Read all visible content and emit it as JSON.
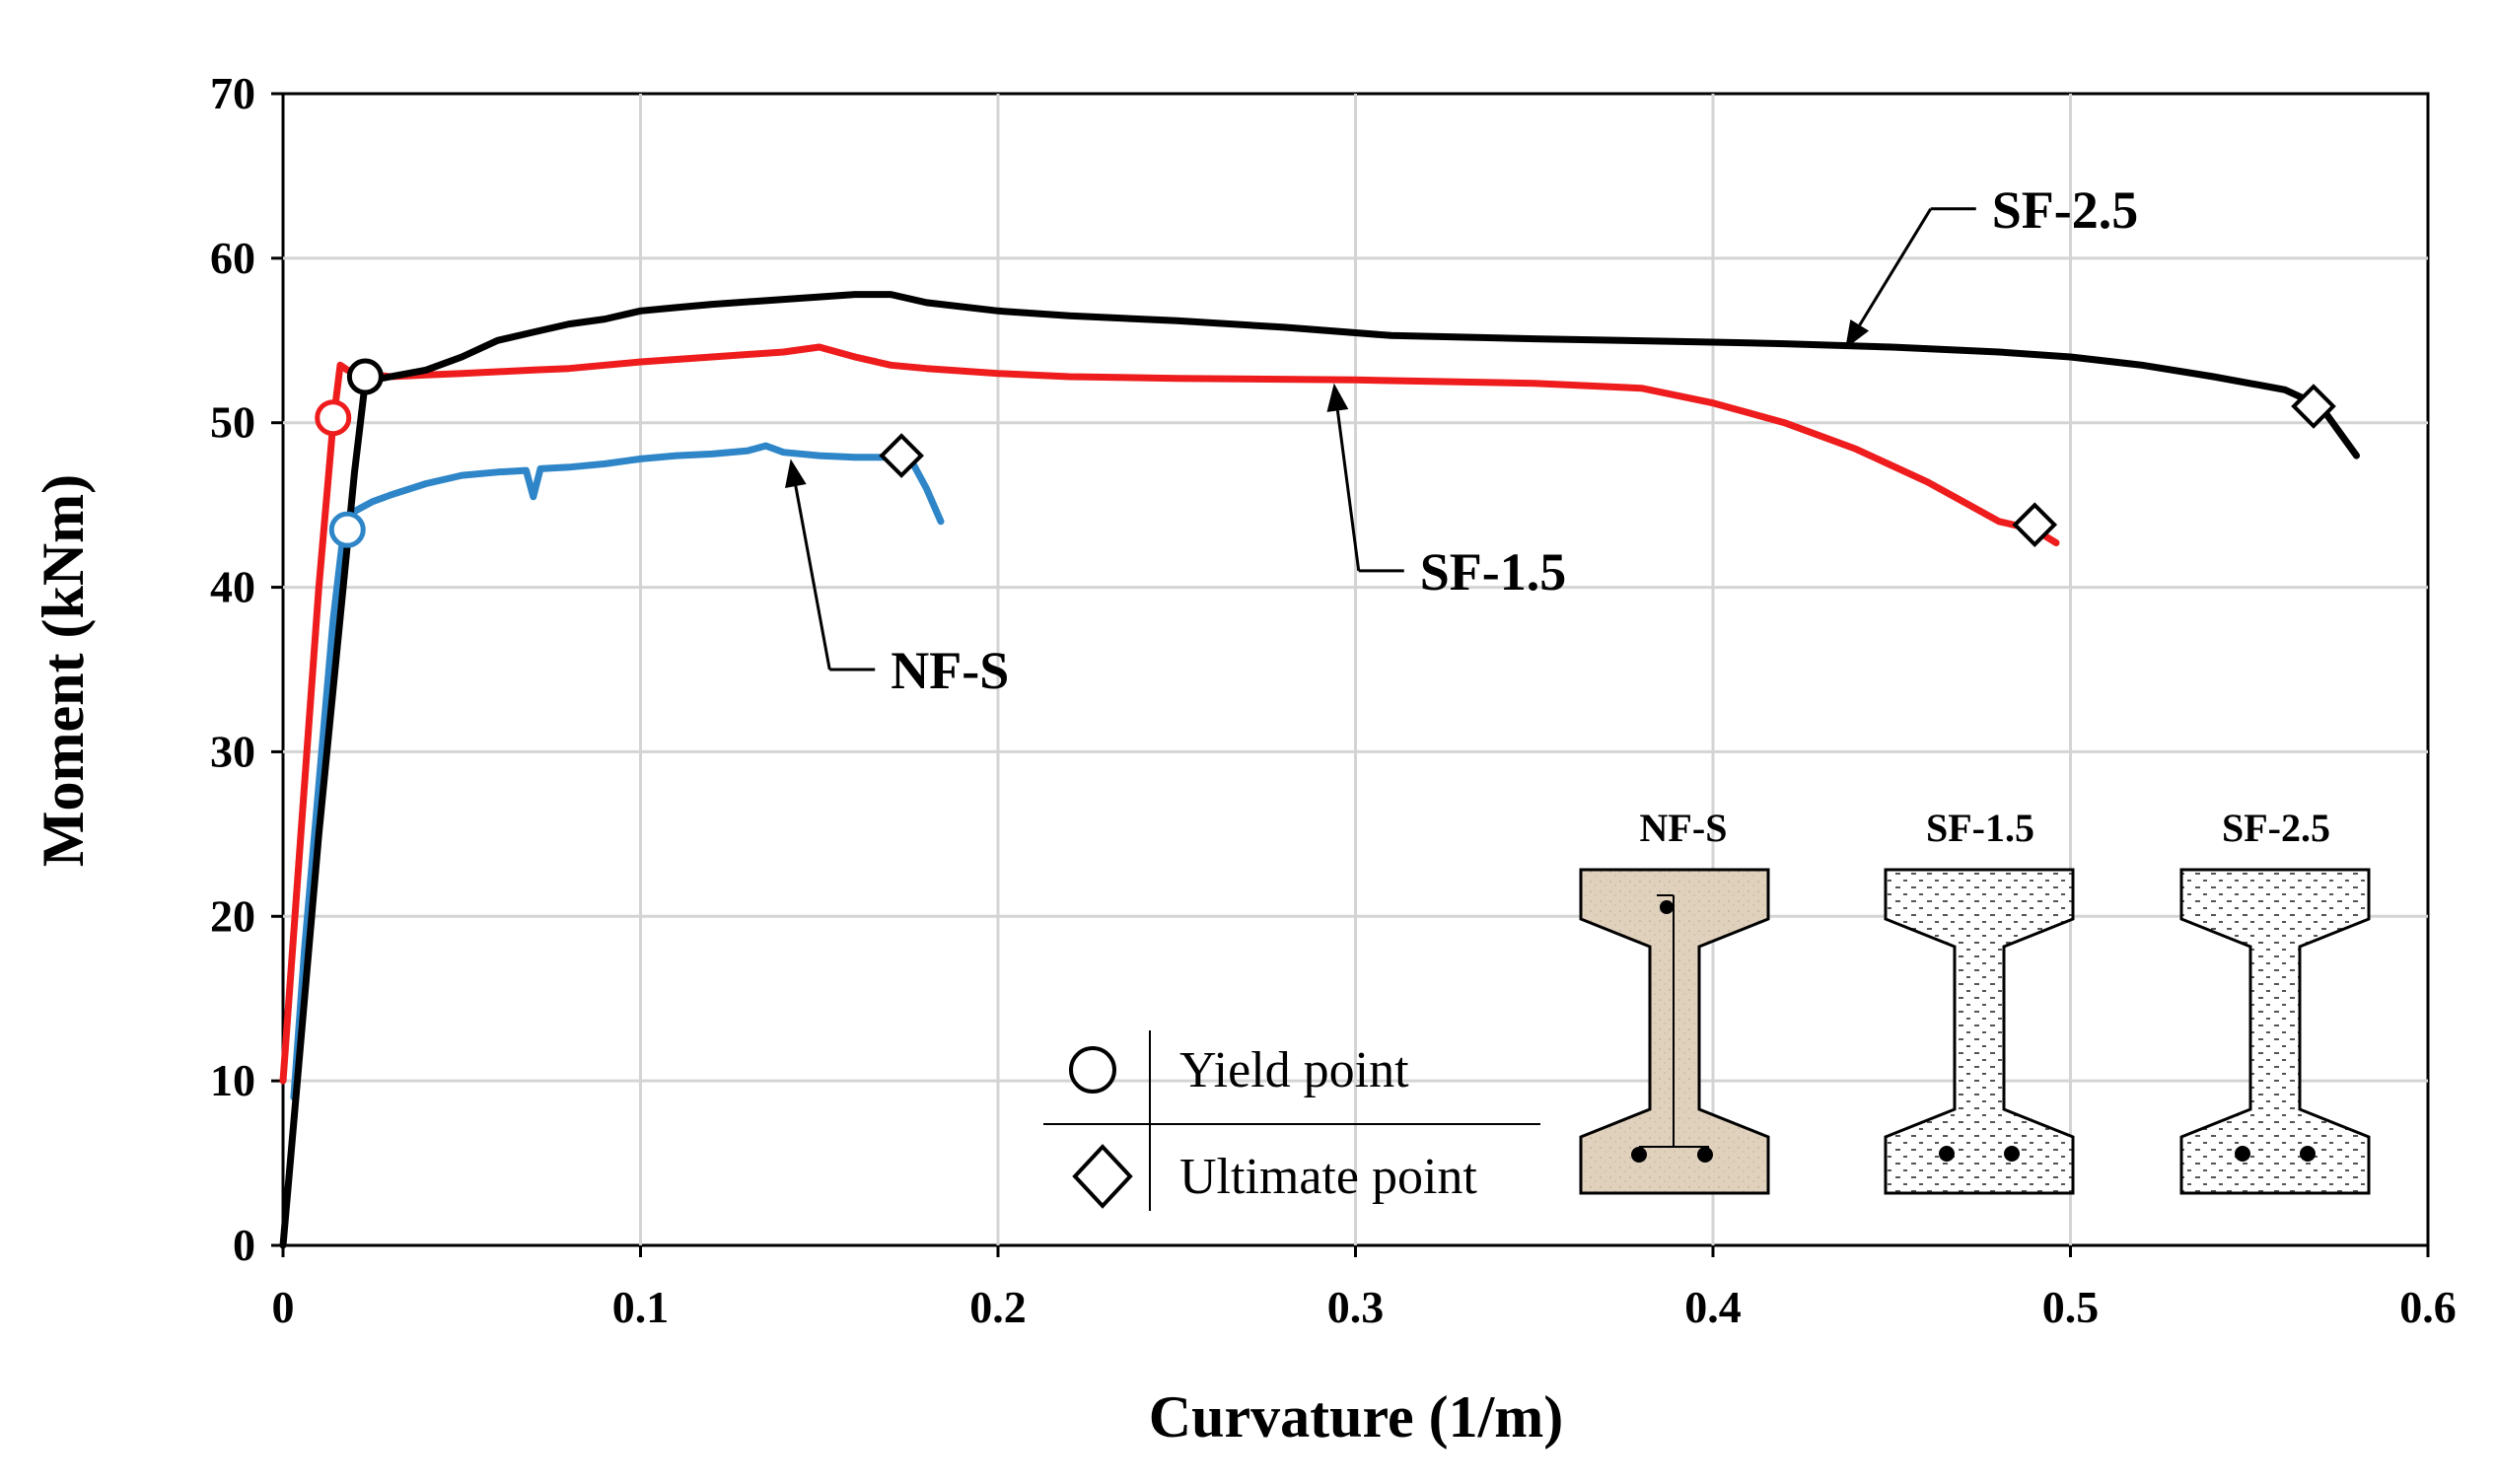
{
  "chart_data": {
    "type": "line",
    "title": "",
    "xlabel": "Curvature (1/m)",
    "ylabel": "Moment (kNm)",
    "xlim": [
      0,
      0.6
    ],
    "ylim": [
      0,
      70
    ],
    "xticks": [
      0,
      0.1,
      0.2,
      0.3,
      0.4,
      0.5,
      0.6
    ],
    "xtick_labels": [
      "0",
      "0.1",
      "0.2",
      "0.3",
      "0.4",
      "0.5",
      "0.6"
    ],
    "yticks": [
      0,
      10,
      20,
      30,
      40,
      50,
      60,
      70
    ],
    "ytick_labels": [
      "0",
      "10",
      "20",
      "30",
      "40",
      "50",
      "60",
      "70"
    ],
    "grid": true,
    "series": [
      {
        "name": "NF-S",
        "color": "#2e86c8",
        "x": [
          0.003,
          0.006,
          0.01,
          0.014,
          0.017,
          0.019,
          0.025,
          0.03,
          0.04,
          0.05,
          0.06,
          0.068,
          0.07,
          0.072,
          0.08,
          0.09,
          0.1,
          0.11,
          0.12,
          0.13,
          0.135,
          0.14,
          0.15,
          0.16,
          0.17,
          0.175,
          0.18,
          0.184
        ],
        "y": [
          9,
          18,
          28,
          38,
          43.5,
          44.5,
          45.2,
          45.6,
          46.3,
          46.8,
          47,
          47.1,
          45.5,
          47.2,
          47.3,
          47.5,
          47.8,
          48,
          48.1,
          48.3,
          48.6,
          48.2,
          48,
          47.9,
          47.9,
          48,
          46,
          44
        ]
      },
      {
        "name": "SF-1.5",
        "color": "#ee1c1c",
        "x": [
          0,
          0.005,
          0.01,
          0.014,
          0.016,
          0.018,
          0.022,
          0.03,
          0.04,
          0.05,
          0.06,
          0.07,
          0.08,
          0.1,
          0.12,
          0.14,
          0.15,
          0.16,
          0.17,
          0.18,
          0.2,
          0.22,
          0.25,
          0.3,
          0.35,
          0.38,
          0.4,
          0.42,
          0.44,
          0.46,
          0.47,
          0.48,
          0.49,
          0.496
        ],
        "y": [
          10,
          25,
          40,
          50,
          53.5,
          53.2,
          53,
          52.8,
          52.9,
          53,
          53.1,
          53.2,
          53.3,
          53.7,
          54,
          54.3,
          54.6,
          54,
          53.5,
          53.3,
          53,
          52.8,
          52.7,
          52.6,
          52.4,
          52.1,
          51.2,
          50,
          48.4,
          46.4,
          45.2,
          44,
          43.5,
          42.7
        ]
      },
      {
        "name": "SF-2.5",
        "color": "#000000",
        "x": [
          0,
          0.01,
          0.02,
          0.023,
          0.03,
          0.04,
          0.05,
          0.06,
          0.07,
          0.08,
          0.09,
          0.1,
          0.11,
          0.12,
          0.14,
          0.16,
          0.17,
          0.18,
          0.2,
          0.22,
          0.25,
          0.28,
          0.31,
          0.35,
          0.4,
          0.42,
          0.45,
          0.48,
          0.5,
          0.52,
          0.54,
          0.56,
          0.57,
          0.575,
          0.58
        ],
        "y": [
          0,
          25,
          47,
          52.5,
          52.8,
          53.2,
          54,
          55,
          55.5,
          56,
          56.3,
          56.8,
          57,
          57.2,
          57.5,
          57.8,
          57.8,
          57.3,
          56.8,
          56.5,
          56.2,
          55.8,
          55.3,
          55.1,
          54.9,
          54.8,
          54.6,
          54.3,
          54,
          53.5,
          52.8,
          52,
          51,
          49.5,
          48
        ]
      }
    ],
    "yield_points": [
      {
        "series": "NF-S",
        "x": 0.018,
        "y": 43.5
      },
      {
        "series": "SF-1.5",
        "x": 0.014,
        "y": 50.3
      },
      {
        "series": "SF-2.5",
        "x": 0.023,
        "y": 52.8
      }
    ],
    "ultimate_points": [
      {
        "series": "NF-S",
        "x": 0.173,
        "y": 48
      },
      {
        "series": "SF-1.5",
        "x": 0.49,
        "y": 43.8
      },
      {
        "series": "SF-2.5",
        "x": 0.568,
        "y": 51
      }
    ],
    "annotations": [
      {
        "text": "SF-2.5",
        "arrow_to": [
          0.437,
          54.5
        ],
        "label_at": [
          0.478,
          63
        ]
      },
      {
        "text": "SF-1.5",
        "arrow_to": [
          0.294,
          52.4
        ],
        "label_at": [
          0.318,
          41
        ]
      },
      {
        "text": "NF-S",
        "arrow_to": [
          0.142,
          47.8
        ],
        "label_at": [
          0.17,
          35
        ]
      }
    ],
    "legend": {
      "position": "bottom-center",
      "entries": [
        {
          "marker": "circle",
          "label": "Yield point"
        },
        {
          "marker": "diamond",
          "label": "Ultimate point"
        }
      ]
    },
    "inset_sections": {
      "position": "bottom-right",
      "items": [
        {
          "label": "NF-S",
          "fill": "#e0d1bd"
        },
        {
          "label": "SF-1.5",
          "fill": "dotted"
        },
        {
          "label": "SF-2.5",
          "fill": "dotted"
        }
      ]
    }
  }
}
